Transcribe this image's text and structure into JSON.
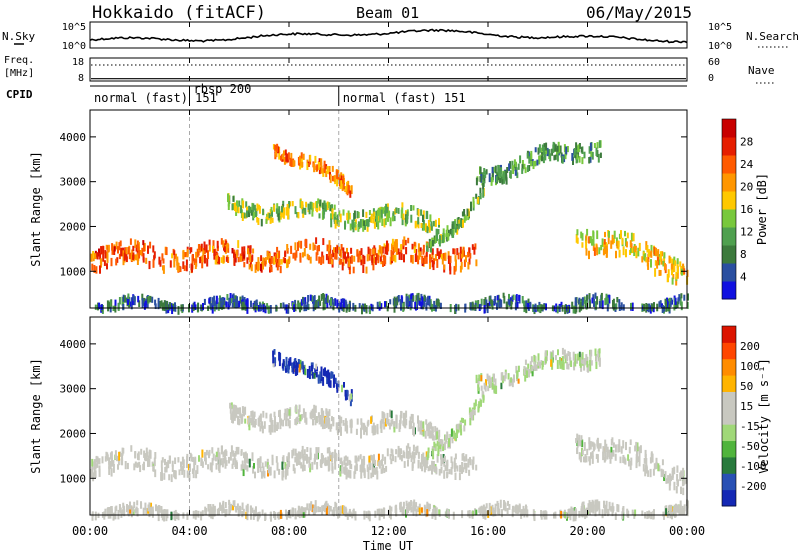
{
  "header": {
    "radar": "Hokkaido (fitACF)",
    "beam": "Beam 01",
    "date": "06/May/2015"
  },
  "nsky_panel": {
    "left_label": "N.Sky",
    "right_label": "N.Search",
    "left_ticks": [
      "10^5",
      "10^0"
    ],
    "right_ticks": [
      "10^5",
      "10^0"
    ]
  },
  "freq_panel": {
    "left_label_line1": "Freq.",
    "left_label_line2": "[MHz]",
    "right_label": "Nave",
    "left_ticks": [
      "18",
      "8"
    ],
    "right_ticks": [
      "60",
      "0"
    ],
    "freq_mhz": 9
  },
  "cpid_panel": {
    "label": "CPID",
    "segments": [
      {
        "text": "normal (fast) 151",
        "start_ut": 0,
        "end_ut": 4.0
      },
      {
        "text": "rbsp 200",
        "start_ut": 4.0,
        "end_ut": 10.0
      },
      {
        "text": "normal (fast) 151",
        "start_ut": 10.0,
        "end_ut": 24
      }
    ]
  },
  "time_axis": {
    "label": "Time UT",
    "ticks": [
      "00:00",
      "04:00",
      "08:00",
      "12:00",
      "16:00",
      "20:00",
      "00:00"
    ]
  },
  "power_panel": {
    "ylabel": "Slant Range [km]",
    "yticks": [
      "1000",
      "2000",
      "3000",
      "4000"
    ],
    "colorbar_label": "Power [dB]",
    "colorbar_ticks": [
      "4",
      "8",
      "12",
      "16",
      "20",
      "24",
      "28"
    ],
    "colors": [
      "#1010e0",
      "#2a4fa0",
      "#3c7a3c",
      "#4fa04f",
      "#78c83c",
      "#ffc800",
      "#ff9600",
      "#ff5a00",
      "#e61e00",
      "#c80000"
    ]
  },
  "velocity_panel": {
    "ylabel": "Slant Range [km]",
    "yticks": [
      "1000",
      "2000",
      "3000",
      "4000"
    ],
    "colorbar_label": "Velocity [m s⁻¹]",
    "colorbar_ticks": [
      "200",
      "100",
      "50",
      "15",
      "-15",
      "-50",
      "-100",
      "-200"
    ],
    "colors": [
      "#1428b4",
      "#2850b4",
      "#287a3c",
      "#50b43c",
      "#a0d878",
      "#c8c8c0",
      "#c8c8c0",
      "#ffb400",
      "#ff8c00",
      "#ff4600",
      "#dc1400"
    ]
  },
  "chart_data": {
    "type": "heatmap",
    "title": "Hokkaido (fitACF) Beam 01 06/May/2015",
    "xlabel": "Time UT",
    "ylabel": "Slant Range [km]",
    "xlim_hours": [
      0,
      24
    ],
    "ylim_km": [
      180,
      4600
    ],
    "scatter_features": [
      {
        "name": "main_band",
        "t_start": 0,
        "t_end": 15.5,
        "range_start_km": 1400,
        "range_end_km": 1450,
        "width_km": 450,
        "power_db": 24,
        "velocity": -5
      },
      {
        "name": "dusk_band",
        "t_start": 19.5,
        "t_end": 24,
        "range_start_km": 1900,
        "range_end_km": 1100,
        "width_km": 500,
        "power_db": 18,
        "velocity": 0
      },
      {
        "name": "upper_diagonal",
        "t_start": 7.3,
        "t_end": 10.5,
        "range_start_km": 3900,
        "range_end_km": 2900,
        "width_km": 250,
        "power_db": 22,
        "velocity": 210
      },
      {
        "name": "late_upper_streak",
        "t_start": 15.5,
        "t_end": 20.5,
        "range_start_km": 3200,
        "range_end_km": 3900,
        "width_km": 350,
        "power_db": 10,
        "velocity": 20
      },
      {
        "name": "rising_edge",
        "t_start": 13.5,
        "t_end": 15.8,
        "range_start_km": 1500,
        "range_end_km": 2900,
        "width_km": 250,
        "power_db": 12,
        "velocity": 30
      },
      {
        "name": "mid_band",
        "t_start": 5.5,
        "t_end": 14,
        "range_start_km": 2500,
        "range_end_km": 2200,
        "width_km": 350,
        "power_db": 14,
        "velocity": 5
      },
      {
        "name": "near_range_clutter",
        "t_start": 0,
        "t_end": 24,
        "range_start_km": 300,
        "range_end_km": 300,
        "width_km": 220,
        "power_db": 6,
        "velocity": -30
      }
    ]
  }
}
